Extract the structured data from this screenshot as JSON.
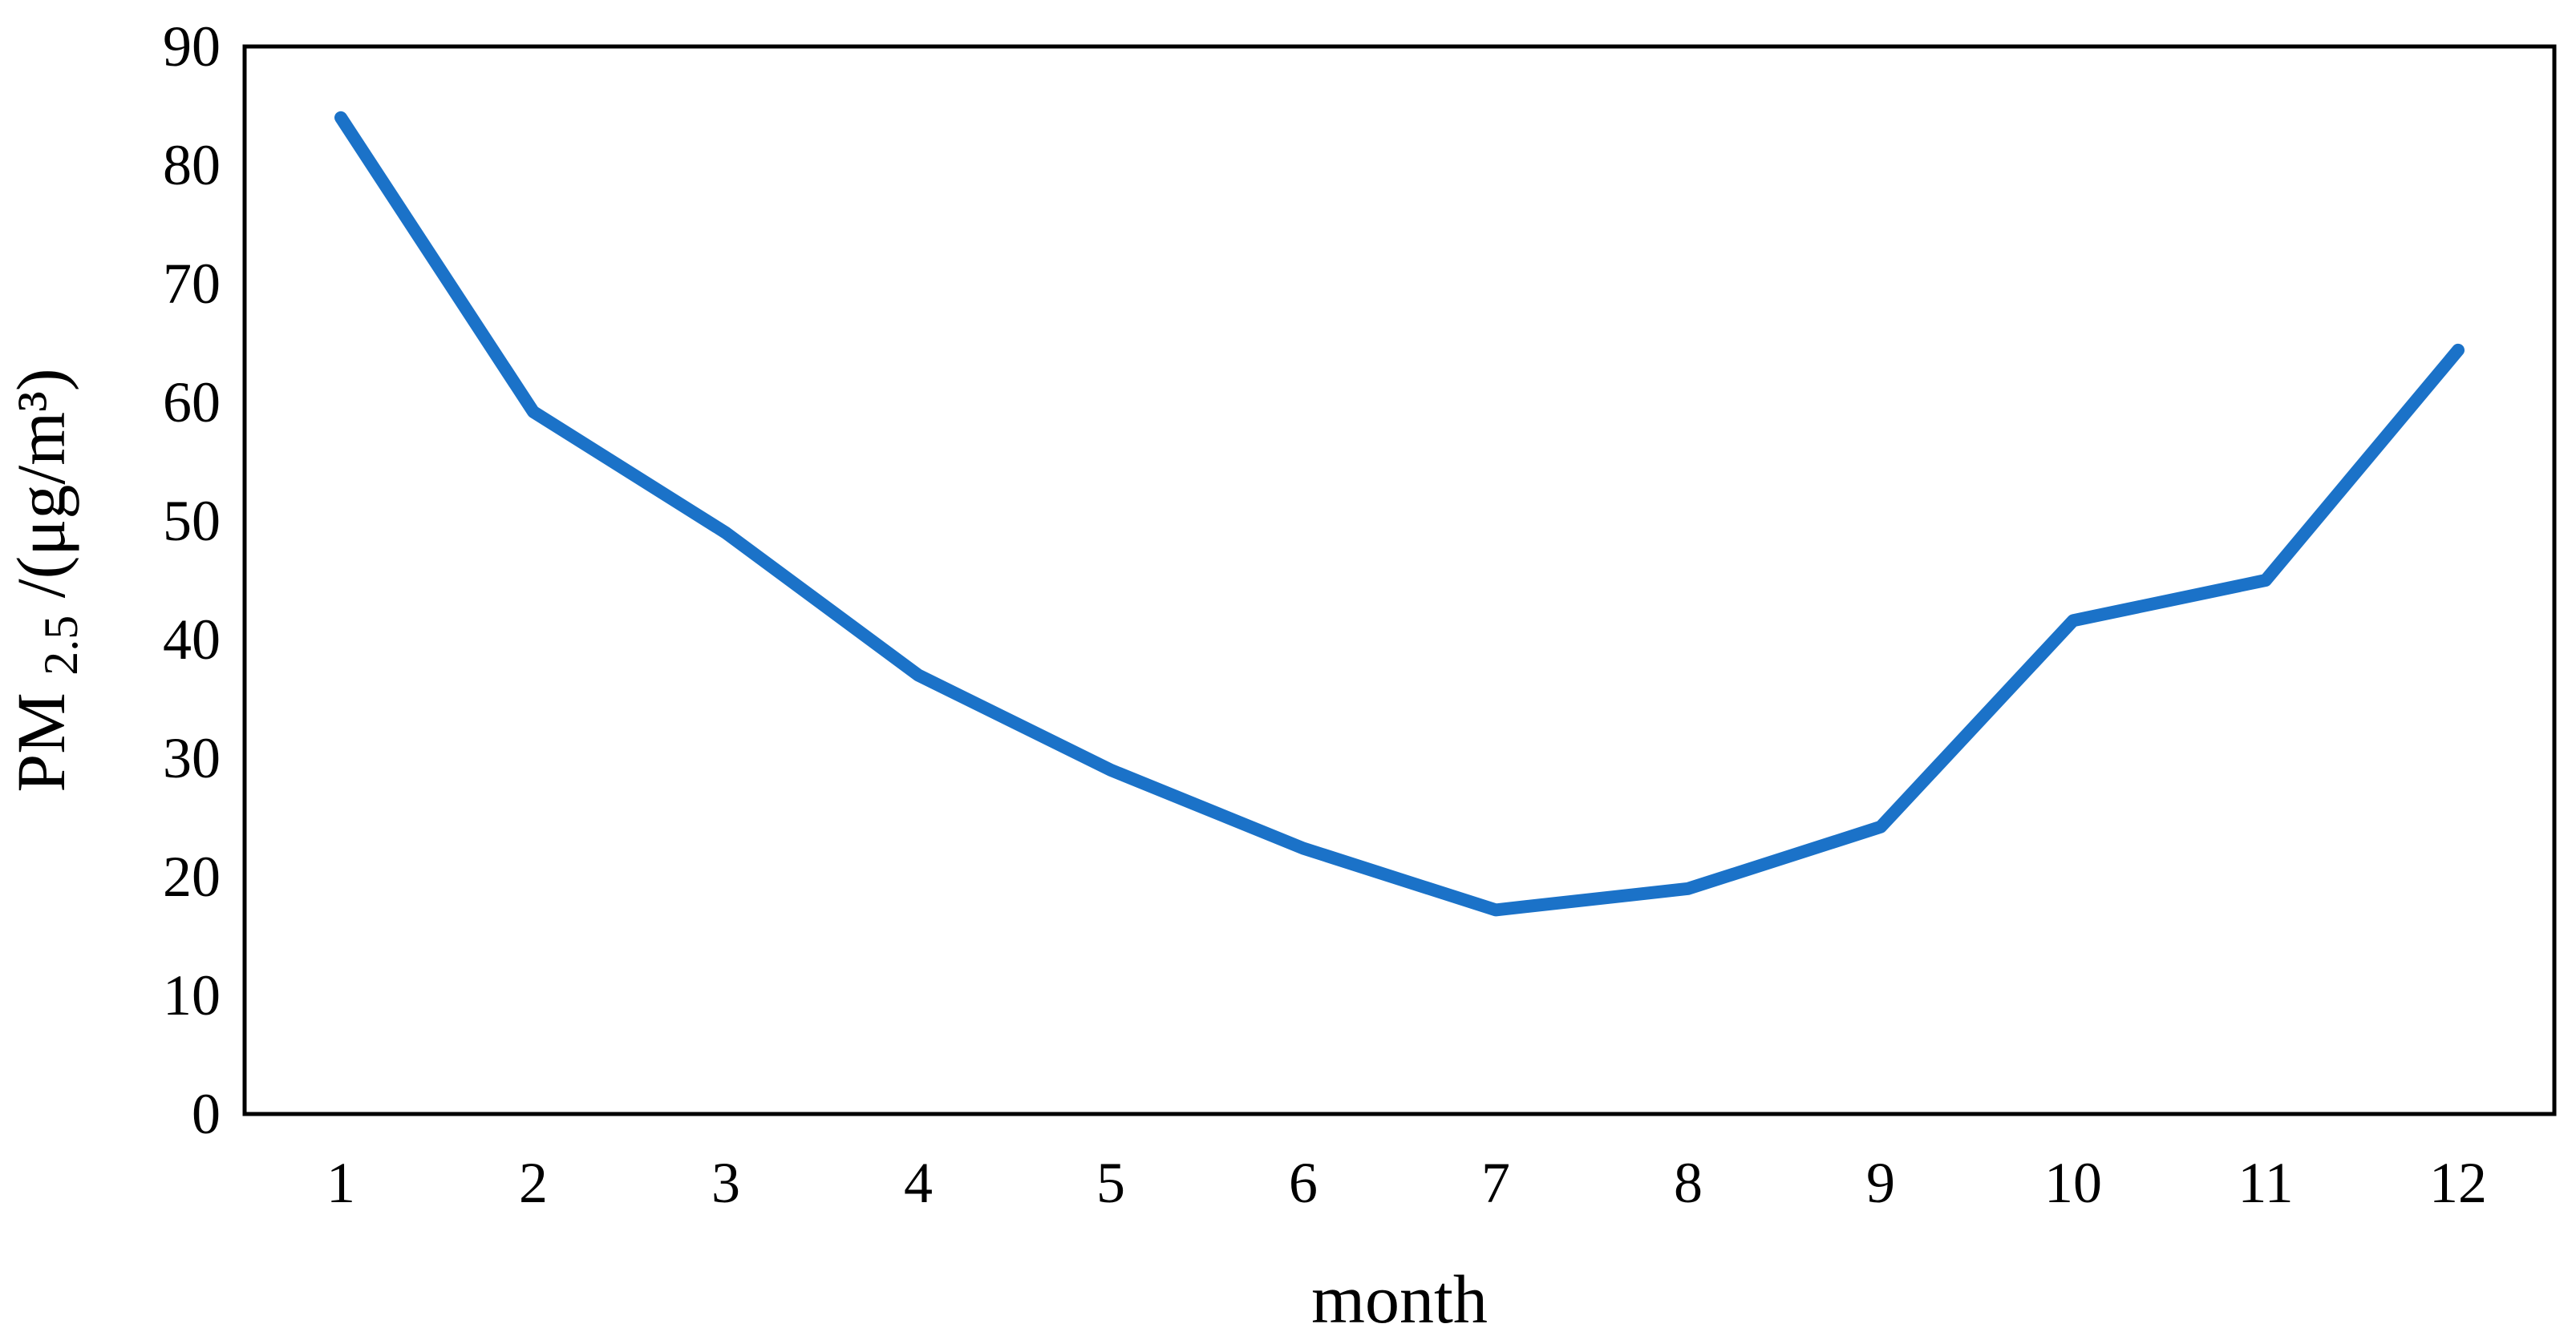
{
  "chart_data": {
    "type": "line",
    "title": "",
    "xlabel": "month",
    "ylabel": {
      "prefix": "PM",
      "subscript": "2.5",
      "suffix": "/(μg/m³)"
    },
    "categories": [
      "1",
      "2",
      "3",
      "4",
      "5",
      "6",
      "7",
      "8",
      "9",
      "10",
      "11",
      "12"
    ],
    "series": [
      {
        "values": [
          84,
          59.2,
          49,
          37,
          29,
          22.4,
          17.2,
          19,
          24.2,
          41.6,
          45,
          64.4
        ],
        "color": "#1B72C8"
      }
    ],
    "ylim": [
      0,
      90
    ],
    "yticks": [
      "0",
      "10",
      "20",
      "30",
      "40",
      "50",
      "60",
      "70",
      "80",
      "90"
    ],
    "grid": false,
    "legend": "none"
  }
}
